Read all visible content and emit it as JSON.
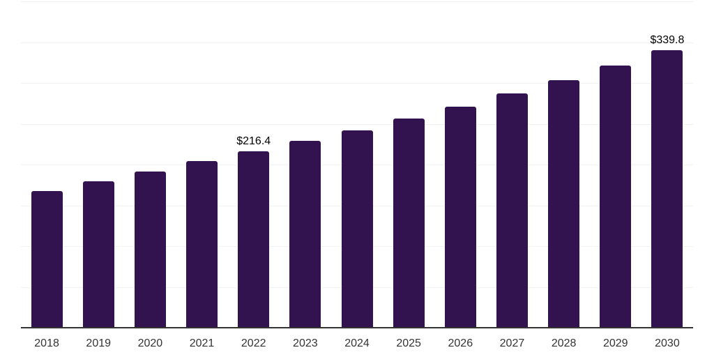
{
  "chart_data": {
    "type": "bar",
    "title": "",
    "xlabel": "",
    "ylabel": "",
    "categories": [
      "2018",
      "2019",
      "2020",
      "2021",
      "2022",
      "2023",
      "2024",
      "2025",
      "2026",
      "2027",
      "2028",
      "2029",
      "2030"
    ],
    "values": [
      167.4,
      179.2,
      191.2,
      204.1,
      216.4,
      229.0,
      242.3,
      256.3,
      271.2,
      287.0,
      303.6,
      321.2,
      339.8
    ],
    "data_labels": [
      {
        "category": "2022",
        "text": "$216.4"
      },
      {
        "category": "2030",
        "text": "$339.8"
      }
    ],
    "ylim": [
      0,
      400
    ],
    "grid_step": 50,
    "grid": "horizontal-only",
    "legend": "none",
    "colors": {
      "bar": "#331250",
      "gridline": "#f2f2f2",
      "axis_line": "#333333",
      "tick_label": "#333333",
      "data_label": "#000000",
      "background": "#ffffff"
    }
  }
}
